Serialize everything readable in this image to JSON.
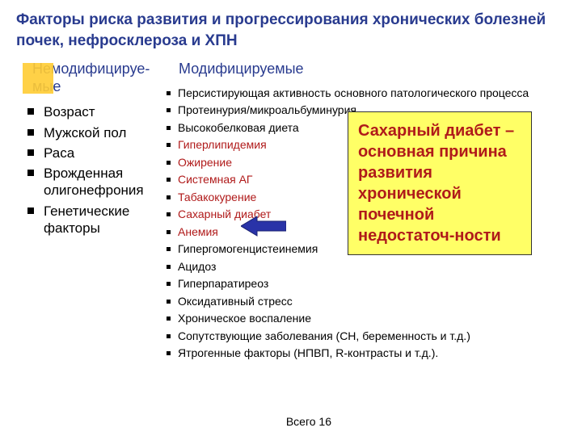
{
  "title": "Факторы риска развития и прогрессирования хронических болезней почек, нефросклероза и ХПН",
  "leftColumn": {
    "header": "Немодифицируе-мые",
    "items": [
      {
        "text": "Возраст",
        "red": false
      },
      {
        "text": "Мужской пол",
        "red": false
      },
      {
        "text": "Раса",
        "red": false
      },
      {
        "text": "Врожденная олигонефрония",
        "red": false
      },
      {
        "text": "Генетические факторы",
        "red": false
      }
    ]
  },
  "midColumn": {
    "header": "Модифицируемые",
    "items": [
      {
        "text": "Персистирующая активность основного патологического процесса",
        "red": false
      },
      {
        "text": "Протеинурия/микроальбуминурия",
        "red": false
      },
      {
        "text": "Высокобелковая диета",
        "red": false
      },
      {
        "text": "Гиперлипидемия",
        "red": true
      },
      {
        "text": "Ожирение",
        "red": true
      },
      {
        "text": "Системная АГ",
        "red": true
      },
      {
        "text": "Табакокурение",
        "red": true
      },
      {
        "text": "Сахарный диабет",
        "red": true
      },
      {
        "text": "Анемия",
        "red": true
      },
      {
        "text": "Гипергомогенцистеинемия",
        "red": false
      },
      {
        "text": "Ацидоз",
        "red": false
      },
      {
        "text": "Гиперпаратиреоз",
        "red": false
      },
      {
        "text": "Оксидативный стресс",
        "red": false
      },
      {
        "text": "Хроническое воспаление",
        "red": false
      },
      {
        "text": "Сопутствующие заболевания (СН, беременность и т.д.)",
        "red": false
      },
      {
        "text": "Ятрогенные факторы (НПВП, R-контрасты и т.д.).",
        "red": false
      }
    ]
  },
  "callout": "Сахарный диабет – основная причина развития хронической почечной недостаточ-ности",
  "footer": "Всего 16",
  "colors": {
    "title": "#293b8f",
    "redText": "#b01a1a",
    "calloutBg": "#ffff66",
    "decor": "#ffcc33",
    "arrow": "#2933a8"
  },
  "arrow": {
    "width": 56,
    "height": 28,
    "color": "#2933a8"
  }
}
